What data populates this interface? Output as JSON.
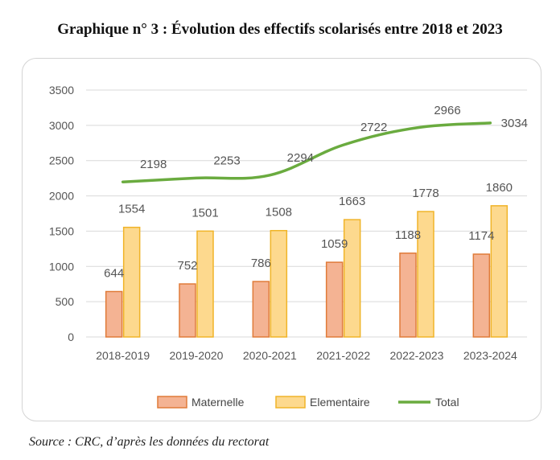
{
  "title": "Graphique n° 3 : Évolution des effectifs scolarisés entre 2018 et 2023",
  "source": "Source : CRC, d’après les données du rectorat",
  "colors": {
    "maternelle_fill": "#F4B393",
    "maternelle_stroke": "#E07B39",
    "elementaire_fill": "#FDD98E",
    "elementaire_stroke": "#F0B429",
    "total": "#6AAB3F",
    "grid": "#d9d9d9"
  },
  "chart_data": {
    "type": "bar",
    "categories": [
      "2018-2019",
      "2019-2020",
      "2020-2021",
      "2021-2022",
      "2022-2023",
      "2023-2024"
    ],
    "series": [
      {
        "name": "Maternelle",
        "type": "bar",
        "values": [
          644,
          752,
          786,
          1059,
          1188,
          1174
        ]
      },
      {
        "name": "Elementaire",
        "type": "bar",
        "values": [
          1554,
          1501,
          1508,
          1663,
          1778,
          1860
        ]
      },
      {
        "name": "Total",
        "type": "line",
        "values": [
          2198,
          2253,
          2294,
          2722,
          2966,
          3034
        ]
      }
    ],
    "yticks": [
      0,
      500,
      1000,
      1500,
      2000,
      2500,
      3000,
      3500
    ],
    "ylim": [
      0,
      3500
    ],
    "grid": true,
    "legend": "bottom",
    "data_labels": true
  }
}
